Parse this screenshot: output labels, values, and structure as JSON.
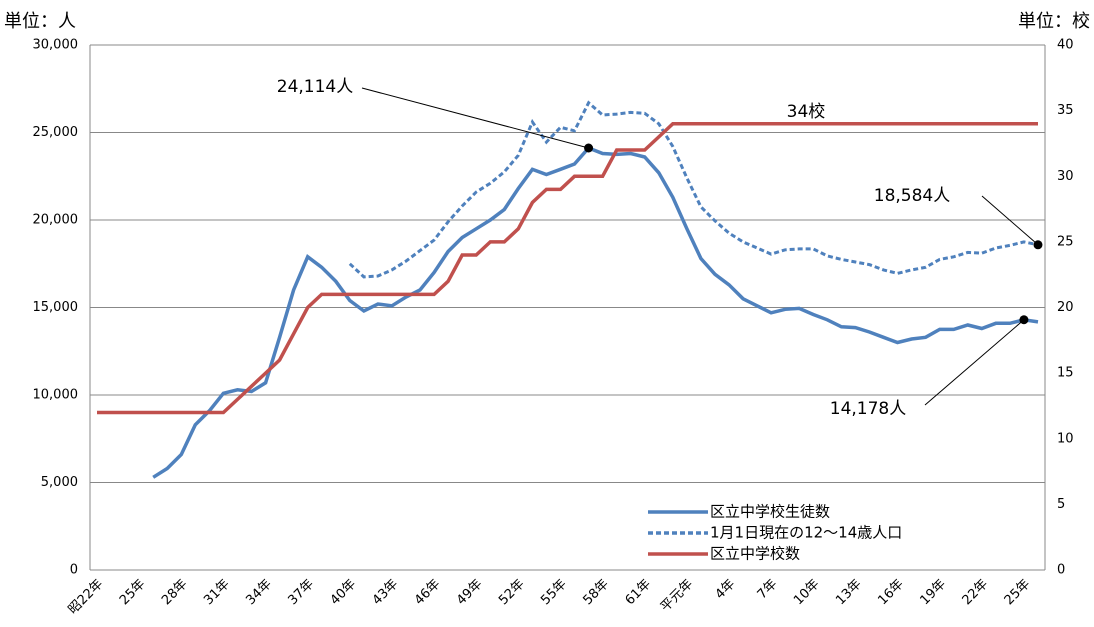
{
  "chart_data": {
    "type": "line",
    "y_unit": "単位：人",
    "y2_unit": "単位：校",
    "categories": [
      "昭22年",
      null,
      null,
      "25年",
      null,
      null,
      "28年",
      null,
      null,
      "31年",
      null,
      null,
      "34年",
      null,
      null,
      "37年",
      null,
      null,
      "40年",
      null,
      null,
      "43年",
      null,
      null,
      "46年",
      null,
      null,
      "49年",
      null,
      null,
      "52年",
      null,
      null,
      "55年",
      null,
      null,
      "58年",
      null,
      null,
      "61年",
      null,
      null,
      "平元年",
      null,
      null,
      "4年",
      null,
      null,
      "7年",
      null,
      null,
      "10年",
      null,
      null,
      "13年",
      null,
      null,
      "16年",
      null,
      null,
      "19年",
      null,
      null,
      "22年",
      null,
      null,
      "25年",
      null
    ],
    "series": [
      {
        "name": "区立中学校生徒数",
        "color": "#4f81bd",
        "dash": false,
        "values": [
          null,
          null,
          null,
          null,
          5300,
          5800,
          6600,
          8300,
          9100,
          10100,
          10300,
          10200,
          10700,
          13300,
          16000,
          17900,
          17300,
          16500,
          15400,
          14800,
          15200,
          15100,
          15600,
          16000,
          17000,
          18200,
          19000,
          19500,
          20000,
          20600,
          21800,
          22900,
          22600,
          22900,
          23200,
          24114,
          23800,
          23750,
          23800,
          23600,
          22700,
          21300,
          19500,
          17800,
          16900,
          16300,
          15500,
          15100,
          14700,
          14900,
          14950,
          14600,
          14300,
          13900,
          13850,
          13600,
          13300,
          13000,
          13200,
          13300,
          13750,
          13750,
          14000,
          13800,
          14100,
          14100,
          14300,
          14178
        ]
      },
      {
        "name": "1月1日現在の12～14歳人口",
        "color": "#4f81bd",
        "dash": true,
        "values": [
          null,
          null,
          null,
          null,
          null,
          null,
          null,
          null,
          null,
          null,
          null,
          null,
          null,
          null,
          null,
          null,
          null,
          null,
          17500,
          16750,
          16800,
          17150,
          17650,
          18250,
          18850,
          19900,
          20800,
          21600,
          22100,
          22750,
          23700,
          25600,
          24450,
          25300,
          25100,
          26700,
          26000,
          26050,
          26150,
          26100,
          25500,
          24200,
          22400,
          20750,
          19950,
          19250,
          18750,
          18400,
          18050,
          18300,
          18350,
          18350,
          17950,
          17750,
          17600,
          17450,
          17150,
          16950,
          17150,
          17300,
          17750,
          17900,
          18150,
          18100,
          18400,
          18550,
          18750,
          18584
        ]
      },
      {
        "name": "区立中学校数",
        "color": "#c0504d",
        "dash": false,
        "axis": "y2",
        "values": [
          12,
          12,
          12,
          12,
          12,
          12,
          12,
          12,
          12,
          12,
          13,
          14,
          15,
          16,
          18,
          20,
          21,
          21,
          21,
          21,
          21,
          21,
          21,
          21,
          21,
          22,
          24,
          24,
          25,
          25,
          26,
          28,
          29,
          29,
          30,
          30,
          30,
          32,
          32,
          32,
          33,
          34,
          34,
          34,
          34,
          34,
          34,
          34,
          34,
          34,
          34,
          34,
          34,
          34,
          34,
          34,
          34,
          34,
          34,
          34,
          34,
          34,
          34,
          34,
          34,
          34,
          34,
          34
        ]
      }
    ],
    "annotations": [
      "24,114人",
      "34校",
      "18,584人",
      "14,178人"
    ],
    "ylim": [
      0,
      30000
    ],
    "yticks": [
      0,
      {
        "value": 5000,
        "label": "5,000"
      },
      {
        "value": 10000,
        "label": "10,000"
      },
      {
        "value": 15000,
        "label": "15,000"
      },
      {
        "value": 20000,
        "label": "20,000"
      },
      {
        "value": 25000,
        "label": "25,000"
      },
      {
        "value": 30000,
        "label": "30,000"
      }
    ],
    "y2lim": [
      0,
      40
    ],
    "y2ticks": [
      0,
      5,
      10,
      15,
      20,
      25,
      30,
      35,
      40
    ],
    "grid": true,
    "legend": "lower right"
  }
}
